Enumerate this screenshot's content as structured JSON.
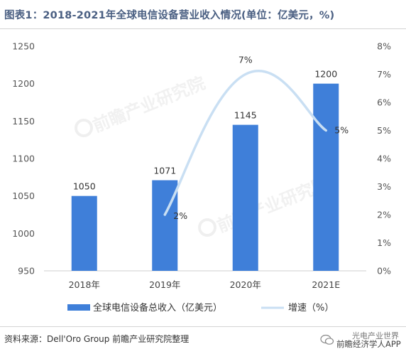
{
  "title": "图表1：2018-2021年全球电信设备营业收入情况(单位：亿美元，%)",
  "source": "资料来源：Dell'Oro Group 前瞻产业研究院整理",
  "brand": {
    "main": "前瞻经济学人APP",
    "sub": "光电产业世界"
  },
  "watermark": {
    "text": "前瞻产业研究院"
  },
  "colors": {
    "bar": "#3f7fd9",
    "line": "#c9dff3",
    "title": "#4a5f82"
  },
  "chart_data": {
    "type": "bar",
    "categories": [
      "2018年",
      "2019年",
      "2020年",
      "2021E"
    ],
    "series": [
      {
        "name": "全球电信设备总收入（亿美元）",
        "type": "bar",
        "axis": "left",
        "values": [
          1050,
          1071,
          1145,
          1200
        ],
        "labels": [
          "1050",
          "1071",
          "1145",
          "1200"
        ]
      },
      {
        "name": "增速（%）",
        "type": "line",
        "axis": "right",
        "values": [
          null,
          2,
          7,
          5
        ],
        "labels": [
          "",
          "2%",
          "7%",
          "5%"
        ]
      }
    ],
    "y_left": {
      "min": 950,
      "max": 1250,
      "ticks": [
        "950",
        "1000",
        "1050",
        "1100",
        "1150",
        "1200",
        "1250"
      ]
    },
    "y_right": {
      "min": 0,
      "max": 8,
      "ticks": [
        "0%",
        "1%",
        "2%",
        "3%",
        "4%",
        "5%",
        "6%",
        "7%",
        "8%"
      ]
    },
    "legend": "bottom",
    "grid": false
  }
}
